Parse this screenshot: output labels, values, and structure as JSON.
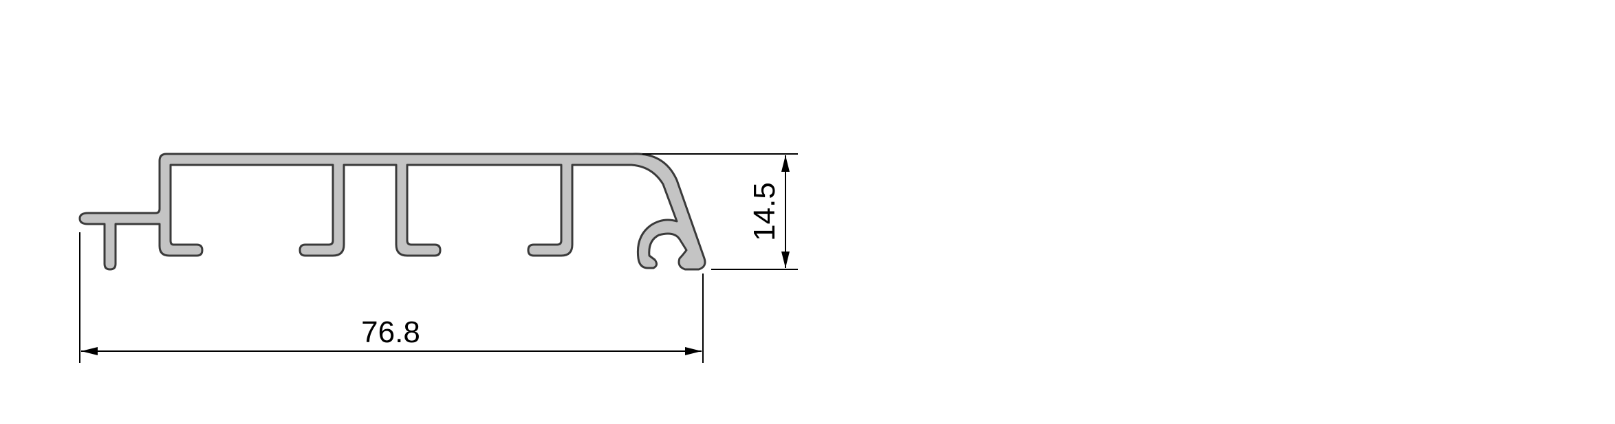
{
  "drawing": {
    "width_dimension": {
      "value": "76.8"
    },
    "height_dimension": {
      "value": "14.5"
    },
    "profile_fill": "#c4c4c4",
    "profile_stroke": "#3a3a3a",
    "line_color": "#000000"
  }
}
